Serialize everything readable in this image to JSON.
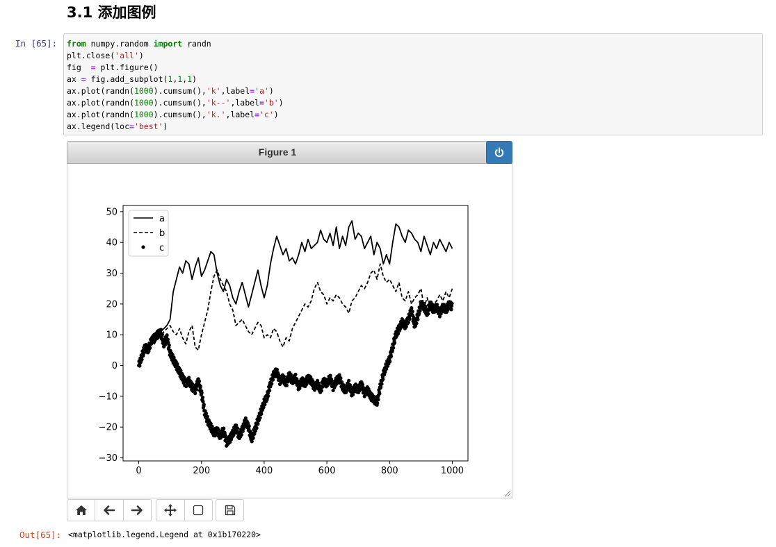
{
  "section_heading": "3.1  添加图例",
  "cell": {
    "in_prompt": "In  [65]:",
    "out_prompt": "Out[65]:",
    "output_text": "<matplotlib.legend.Legend at 0x1b170220>",
    "code": {
      "l1": {
        "kw1": "from",
        "mod": " numpy.random ",
        "kw2": "import",
        "name": " randn"
      },
      "l2": {
        "a": "plt.close(",
        "s": "'all'",
        "b": ")"
      },
      "l3": {
        "a": "fig  ",
        "op": "=",
        "b": " plt.figure()"
      },
      "l4": {
        "a": "ax ",
        "op": "=",
        "b": " fig.add_subplot(",
        "n1": "1",
        "c1": ",",
        "n2": "1",
        "c2": ",",
        "n3": "1",
        "e": ")"
      },
      "l5": {
        "a": "ax.plot(randn(",
        "n": "1000",
        "b": ").cumsum(),",
        "s1": "'k'",
        "c": ",label",
        "op": "=",
        "s2": "'a'",
        "e": ")"
      },
      "l6": {
        "a": "ax.plot(randn(",
        "n": "1000",
        "b": ").cumsum(),",
        "s1": "'k--'",
        "c": ",label",
        "op": "=",
        "s2": "'b'",
        "e": ")"
      },
      "l7": {
        "a": "ax.plot(randn(",
        "n": "1000",
        "b": ").cumsum(),",
        "s1": "'k.'",
        "c": ",label",
        "op": "=",
        "s2": "'c'",
        "e": ")"
      },
      "l8": {
        "a": "ax.legend(loc",
        "op": "=",
        "s": "'best'",
        "e": ")"
      }
    }
  },
  "figure": {
    "title": "Figure 1",
    "toolbar": {
      "home": "home-icon",
      "back": "arrow-left-icon",
      "forward": "arrow-right-icon",
      "pan": "move-icon",
      "zoom": "square-icon",
      "save": "floppy-disk-icon"
    }
  },
  "chart_data": {
    "type": "line",
    "title": "",
    "xlabel": "",
    "ylabel": "",
    "xlim": [
      -50,
      1050
    ],
    "ylim": [
      -31,
      52
    ],
    "x_ticks": [
      0,
      200,
      400,
      600,
      800,
      1000
    ],
    "y_ticks": [
      50,
      40,
      30,
      20,
      10,
      0,
      -10,
      -20,
      -30
    ],
    "legend_position": "top-left",
    "series": [
      {
        "name": "a",
        "style": "solid",
        "x": [
          0,
          10,
          20,
          30,
          40,
          50,
          60,
          70,
          80,
          90,
          100,
          110,
          120,
          130,
          140,
          150,
          160,
          170,
          180,
          190,
          200,
          210,
          220,
          230,
          240,
          250,
          260,
          270,
          280,
          290,
          300,
          310,
          320,
          330,
          340,
          350,
          360,
          370,
          380,
          390,
          400,
          410,
          420,
          430,
          440,
          450,
          460,
          470,
          480,
          490,
          500,
          510,
          520,
          530,
          540,
          550,
          560,
          570,
          580,
          590,
          600,
          610,
          620,
          630,
          640,
          650,
          660,
          670,
          680,
          690,
          700,
          710,
          720,
          730,
          740,
          750,
          760,
          770,
          780,
          790,
          800,
          810,
          820,
          830,
          840,
          850,
          860,
          870,
          880,
          890,
          900,
          910,
          920,
          930,
          940,
          950,
          960,
          970,
          980,
          990,
          1000
        ],
        "y": [
          0,
          2,
          5,
          4,
          8,
          7,
          9,
          11,
          12,
          13,
          15,
          24,
          28,
          32,
          30,
          34,
          33,
          28,
          32,
          35,
          29,
          31,
          34,
          37,
          36,
          30,
          26,
          24,
          28,
          26,
          22,
          20,
          24,
          27,
          23,
          19,
          23,
          27,
          31,
          26,
          22,
          26,
          33,
          38,
          42,
          39,
          36,
          38,
          34,
          35,
          33,
          36,
          40,
          37,
          41,
          38,
          39,
          40,
          44,
          41,
          40,
          43,
          39,
          45,
          38,
          42,
          39,
          45,
          47,
          41,
          43,
          42,
          38,
          40,
          42,
          36,
          40,
          38,
          33,
          36,
          33,
          40,
          46,
          45,
          42,
          40,
          44,
          43,
          41,
          40,
          37,
          42,
          39,
          36,
          40,
          38,
          41,
          39,
          37,
          40,
          38
        ]
      },
      {
        "name": "b",
        "style": "dashed",
        "x": [
          0,
          10,
          20,
          30,
          40,
          50,
          60,
          70,
          80,
          90,
          100,
          110,
          120,
          130,
          140,
          150,
          160,
          170,
          180,
          190,
          200,
          210,
          220,
          230,
          240,
          250,
          260,
          270,
          280,
          290,
          300,
          310,
          320,
          330,
          340,
          350,
          360,
          370,
          380,
          390,
          400,
          410,
          420,
          430,
          440,
          450,
          460,
          470,
          480,
          490,
          500,
          510,
          520,
          530,
          540,
          550,
          560,
          570,
          580,
          590,
          600,
          610,
          620,
          630,
          640,
          650,
          660,
          670,
          680,
          690,
          700,
          710,
          720,
          730,
          740,
          750,
          760,
          770,
          780,
          790,
          800,
          810,
          820,
          830,
          840,
          850,
          860,
          870,
          880,
          890,
          900,
          910,
          920,
          930,
          940,
          950,
          960,
          970,
          980,
          990,
          1000
        ],
        "y": [
          0,
          2,
          4,
          6,
          8,
          9,
          10,
          9,
          11,
          12,
          13,
          11,
          10,
          12,
          9,
          7,
          11,
          13,
          6,
          5,
          10,
          14,
          18,
          24,
          29,
          31,
          28,
          26,
          24,
          20,
          18,
          13,
          14,
          15,
          13,
          11,
          10,
          12,
          14,
          13,
          9,
          10,
          9,
          12,
          11,
          8,
          6,
          9,
          8,
          12,
          14,
          16,
          18,
          20,
          19,
          21,
          25,
          27,
          24,
          23,
          20,
          22,
          21,
          23,
          22,
          20,
          19,
          17,
          21,
          22,
          24,
          26,
          25,
          27,
          30,
          31,
          28,
          33,
          29,
          27,
          28,
          26,
          24,
          27,
          22,
          21,
          24,
          20,
          22,
          23,
          25,
          19,
          22,
          18,
          20,
          21,
          23,
          21,
          24,
          22,
          25
        ]
      },
      {
        "name": "c",
        "style": "dots",
        "x": [
          0,
          10,
          20,
          30,
          40,
          50,
          60,
          70,
          80,
          90,
          100,
          110,
          120,
          130,
          140,
          150,
          160,
          170,
          180,
          190,
          200,
          210,
          220,
          230,
          240,
          250,
          260,
          270,
          280,
          290,
          300,
          310,
          320,
          330,
          340,
          350,
          360,
          370,
          380,
          390,
          400,
          410,
          420,
          430,
          440,
          450,
          460,
          470,
          480,
          490,
          500,
          510,
          520,
          530,
          540,
          550,
          560,
          570,
          580,
          590,
          600,
          610,
          620,
          630,
          640,
          650,
          660,
          670,
          680,
          690,
          700,
          710,
          720,
          730,
          740,
          750,
          760,
          770,
          780,
          790,
          800,
          810,
          820,
          830,
          840,
          850,
          860,
          870,
          880,
          890,
          900,
          910,
          920,
          930,
          940,
          950,
          960,
          970,
          980,
          990,
          1000
        ],
        "y": [
          0,
          3,
          6,
          5,
          8,
          9,
          10,
          11,
          7,
          9,
          4,
          2,
          0,
          -2,
          -4,
          -6,
          -5,
          -7,
          -8,
          -5,
          -9,
          -15,
          -18,
          -20,
          -22,
          -21,
          -23,
          -21,
          -25,
          -24,
          -22,
          -20,
          -23,
          -21,
          -18,
          -20,
          -24,
          -21,
          -18,
          -15,
          -12,
          -10,
          -6,
          -3,
          -2,
          -5,
          -4,
          -6,
          -3,
          -5,
          -4,
          -7,
          -5,
          -6,
          -4,
          -5,
          -7,
          -6,
          -8,
          -5,
          -6,
          -4,
          -7,
          -5,
          -4,
          -7,
          -8,
          -6,
          -9,
          -7,
          -8,
          -6,
          -9,
          -8,
          -10,
          -11,
          -12,
          -7,
          -3,
          0,
          2,
          6,
          10,
          12,
          14,
          13,
          15,
          18,
          13,
          16,
          20,
          19,
          17,
          20,
          18,
          19,
          17,
          19,
          18,
          20,
          19
        ]
      }
    ]
  }
}
